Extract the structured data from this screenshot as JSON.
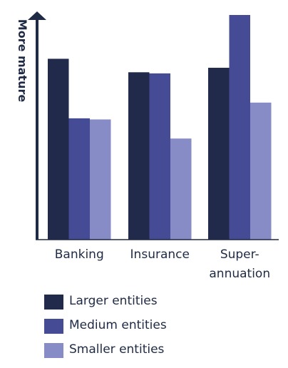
{
  "chart_data": {
    "type": "bar",
    "categories": [
      "Banking",
      "Insurance",
      "Super-annuation"
    ],
    "category_labels": [
      [
        "Banking"
      ],
      [
        "Insurance"
      ],
      [
        "Super-",
        "annuation"
      ]
    ],
    "series": [
      {
        "name": "Larger entities",
        "color": "#222a4c",
        "values": [
          80.5,
          74.5,
          76.5
        ]
      },
      {
        "name": "Medium entities",
        "color": "#454b94",
        "values": [
          54,
          74,
          100
        ]
      },
      {
        "name": "Smaller entities",
        "color": "#878cc7",
        "values": [
          53.5,
          45,
          61
        ]
      }
    ],
    "ylabel": "More mature",
    "xlabel": "",
    "title": "",
    "ylim": [
      0,
      100
    ],
    "grid": false,
    "legend_position": "bottom-left",
    "axis_color": "#1f2a44"
  }
}
